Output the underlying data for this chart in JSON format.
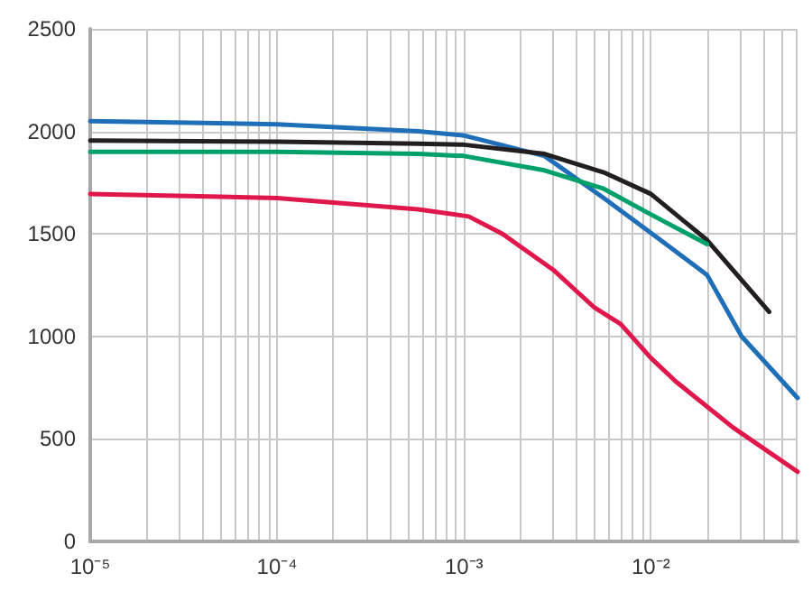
{
  "chart_data": {
    "type": "line",
    "log": "x",
    "grid": true,
    "marker": "none",
    "line_style": "solid",
    "xlim": [
      1e-05,
      0.061
    ],
    "ylim": [
      0,
      2500
    ],
    "xticks": [
      {
        "value": 1e-05,
        "label": "10⁻⁵"
      },
      {
        "value": 2e-05,
        "label": null
      },
      {
        "value": 3e-05,
        "label": null
      },
      {
        "value": 4e-05,
        "label": null
      },
      {
        "value": 5e-05,
        "label": null
      },
      {
        "value": 6e-05,
        "label": null
      },
      {
        "value": 7e-05,
        "label": null
      },
      {
        "value": 8e-05,
        "label": null
      },
      {
        "value": 9e-05,
        "label": null
      },
      {
        "value": 0.0001,
        "label": "10⁻⁴"
      },
      {
        "value": 0.0002,
        "label": null
      },
      {
        "value": 0.0003,
        "label": null
      },
      {
        "value": 0.0004,
        "label": null
      },
      {
        "value": 0.0005,
        "label": null
      },
      {
        "value": 0.0006,
        "label": null
      },
      {
        "value": 0.0007,
        "label": null
      },
      {
        "value": 0.0008,
        "label": null
      },
      {
        "value": 0.0009,
        "label": null
      },
      {
        "value": 0.001,
        "label": "10⁻³"
      },
      {
        "value": 0.002,
        "label": null
      },
      {
        "value": 0.003,
        "label": null
      },
      {
        "value": 0.004,
        "label": null
      },
      {
        "value": 0.005,
        "label": null
      },
      {
        "value": 0.006,
        "label": null
      },
      {
        "value": 0.007,
        "label": null
      },
      {
        "value": 0.008,
        "label": null
      },
      {
        "value": 0.009,
        "label": null
      },
      {
        "value": 0.01,
        "label": "10⁻²"
      },
      {
        "value": 0.02,
        "label": null
      },
      {
        "value": 0.03,
        "label": null
      },
      {
        "value": 0.04,
        "label": null
      },
      {
        "value": 0.05,
        "label": null
      },
      {
        "value": 0.06,
        "label": null
      }
    ],
    "yticks": [
      0,
      500,
      1000,
      1500,
      2000,
      2500
    ],
    "series": [
      {
        "color": "#1f6fb8",
        "x": [
          1e-05,
          0.0001,
          0.00057,
          0.001,
          0.0027,
          0.0056,
          0.01,
          0.02,
          0.0306,
          0.061
        ],
        "values": [
          2050,
          2035,
          2000,
          1980,
          1880,
          1675,
          1505,
          1300,
          1000,
          700
        ]
      },
      {
        "color": "#231f20",
        "x": [
          1e-05,
          0.0001,
          0.00057,
          0.001,
          0.0027,
          0.0056,
          0.01,
          0.02,
          0.043
        ],
        "values": [
          1955,
          1950,
          1940,
          1935,
          1890,
          1800,
          1695,
          1470,
          1120
        ]
      },
      {
        "color": "#00a06a",
        "x": [
          1e-05,
          0.0001,
          0.00057,
          0.001,
          0.0027,
          0.0056,
          0.01,
          0.02
        ],
        "values": [
          1900,
          1900,
          1890,
          1880,
          1810,
          1720,
          1595,
          1450
        ]
      },
      {
        "color": "#e0174a",
        "x": [
          1e-05,
          0.0001,
          0.00057,
          0.00106,
          0.00161,
          0.003,
          0.005,
          0.0069,
          0.01,
          0.0136,
          0.0276,
          0.061
        ],
        "values": [
          1695,
          1675,
          1620,
          1585,
          1500,
          1325,
          1140,
          1060,
          895,
          780,
          555,
          340
        ]
      }
    ]
  }
}
